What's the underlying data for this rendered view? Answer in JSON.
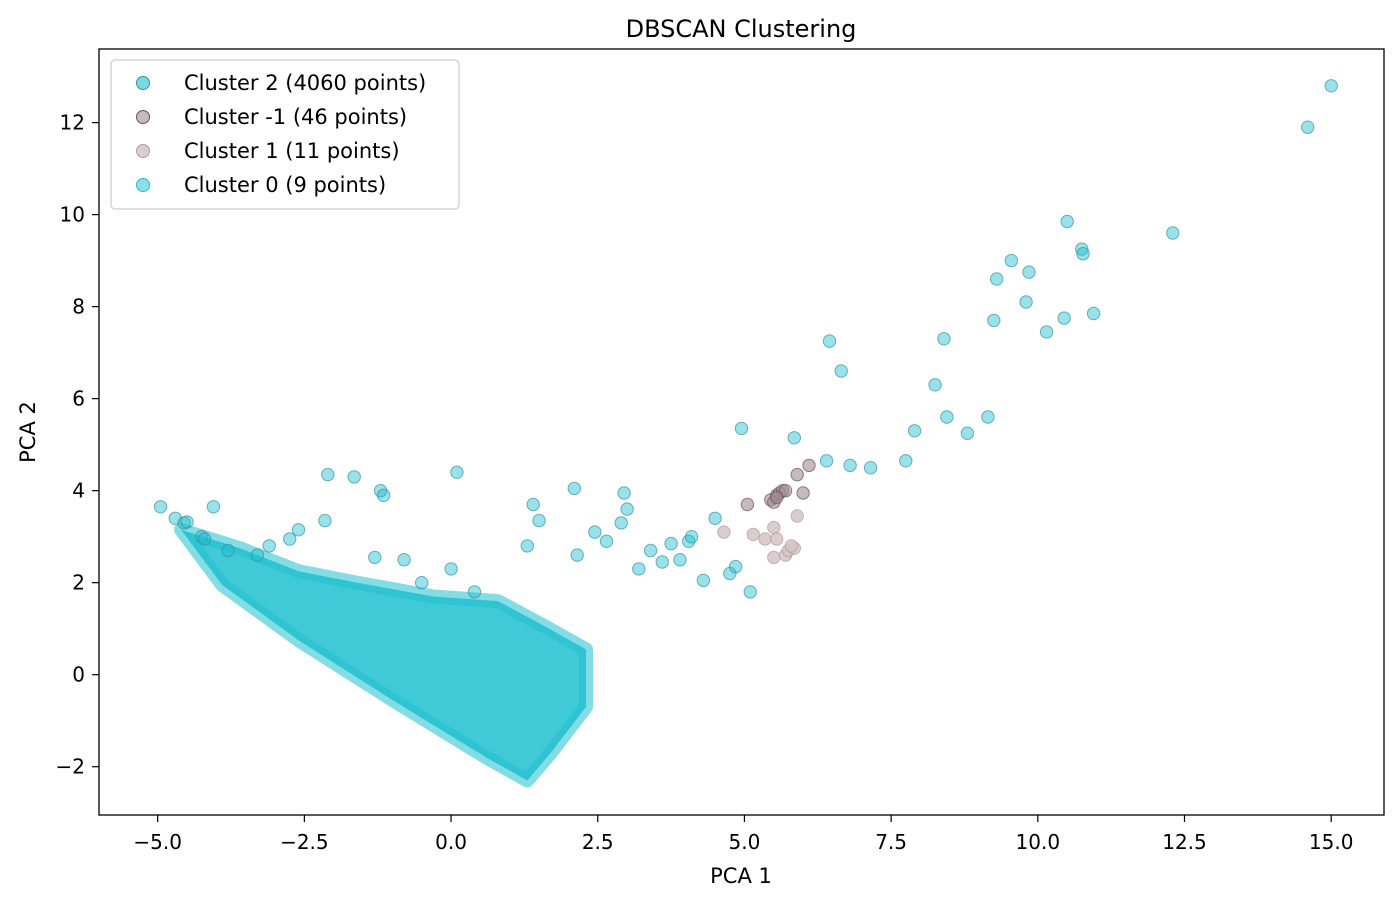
{
  "chart_data": {
    "type": "scatter",
    "title": "DBSCAN Clustering",
    "xlabel": "PCA 1",
    "ylabel": "PCA 2",
    "xlim": [
      -6.0,
      15.9
    ],
    "ylim": [
      -3.05,
      13.6
    ],
    "xticks": [
      -5.0,
      -2.5,
      0.0,
      2.5,
      5.0,
      7.5,
      10.0,
      12.5,
      15.0
    ],
    "xtick_labels": [
      "−5.0",
      "−2.5",
      "0.0",
      "2.5",
      "5.0",
      "7.5",
      "10.0",
      "12.5",
      "15.0"
    ],
    "yticks": [
      -2,
      0,
      2,
      4,
      6,
      8,
      10,
      12
    ],
    "ytick_labels": [
      "−2",
      "0",
      "2",
      "4",
      "6",
      "8",
      "10",
      "12"
    ],
    "grid": false,
    "legend_position": "top-left",
    "series": [
      {
        "name": "Cluster 2 (4060 points)",
        "label": 2,
        "count": 4060,
        "color": "#1fbfcf",
        "edge": "#3a8fa0",
        "opacity": 0.45,
        "points": [
          [
            -4.95,
            3.65
          ],
          [
            -4.7,
            3.4
          ],
          [
            -4.55,
            3.3
          ],
          [
            -4.5,
            3.32
          ],
          [
            -4.25,
            3.0
          ],
          [
            -4.2,
            2.95
          ],
          [
            -4.05,
            3.65
          ],
          [
            -3.8,
            2.7
          ],
          [
            -3.3,
            2.6
          ],
          [
            -3.1,
            2.8
          ],
          [
            -2.75,
            2.95
          ],
          [
            -2.6,
            3.15
          ],
          [
            -2.15,
            3.35
          ],
          [
            -2.1,
            4.35
          ],
          [
            -1.65,
            4.3
          ],
          [
            -1.2,
            4.0
          ],
          [
            -1.15,
            3.9
          ],
          [
            -1.3,
            2.55
          ],
          [
            -0.8,
            2.5
          ],
          [
            -0.5,
            2.0
          ],
          [
            0.1,
            4.4
          ],
          [
            0.0,
            2.3
          ],
          [
            0.4,
            1.8
          ],
          [
            1.3,
            2.8
          ],
          [
            1.4,
            3.7
          ],
          [
            1.5,
            3.35
          ],
          [
            2.1,
            4.05
          ],
          [
            2.15,
            2.6
          ],
          [
            2.45,
            3.1
          ],
          [
            2.65,
            2.9
          ],
          [
            2.9,
            3.3
          ],
          [
            2.95,
            3.95
          ],
          [
            3.0,
            3.6
          ],
          [
            3.2,
            2.3
          ],
          [
            3.4,
            2.7
          ],
          [
            3.6,
            2.45
          ],
          [
            3.75,
            2.85
          ],
          [
            3.9,
            2.5
          ],
          [
            4.05,
            2.9
          ],
          [
            4.1,
            3.0
          ],
          [
            4.3,
            2.05
          ],
          [
            4.5,
            3.4
          ],
          [
            4.75,
            2.2
          ],
          [
            4.85,
            2.35
          ],
          [
            5.1,
            1.8
          ],
          [
            4.95,
            5.35
          ],
          [
            5.85,
            5.15
          ],
          [
            6.4,
            4.65
          ],
          [
            6.45,
            7.25
          ],
          [
            6.65,
            6.6
          ],
          [
            6.8,
            4.55
          ],
          [
            7.15,
            4.5
          ],
          [
            7.75,
            4.65
          ],
          [
            7.9,
            5.3
          ],
          [
            8.25,
            6.3
          ],
          [
            8.4,
            7.3
          ],
          [
            8.45,
            5.6
          ],
          [
            8.8,
            5.25
          ],
          [
            9.15,
            5.6
          ],
          [
            9.25,
            7.7
          ],
          [
            9.3,
            8.6
          ],
          [
            9.55,
            9.0
          ],
          [
            9.8,
            8.1
          ],
          [
            9.85,
            8.75
          ],
          [
            10.15,
            7.45
          ],
          [
            10.45,
            7.75
          ],
          [
            10.5,
            9.85
          ],
          [
            10.75,
            9.25
          ],
          [
            10.77,
            9.15
          ],
          [
            10.95,
            7.85
          ],
          [
            12.3,
            9.6
          ],
          [
            14.6,
            11.9
          ],
          [
            15.0,
            12.8
          ]
        ]
      },
      {
        "name": "Cluster -1 (46 points)",
        "label": -1,
        "count": 46,
        "color": "#9e8c94",
        "edge": "#6a5058",
        "opacity": 0.6,
        "points": [
          [
            5.05,
            3.7
          ],
          [
            5.45,
            3.8
          ],
          [
            5.5,
            3.75
          ],
          [
            5.55,
            3.9
          ],
          [
            5.6,
            3.95
          ],
          [
            5.65,
            4.0
          ],
          [
            5.7,
            4.0
          ],
          [
            5.9,
            4.35
          ],
          [
            6.0,
            3.95
          ],
          [
            6.1,
            4.55
          ],
          [
            5.55,
            3.85
          ]
        ]
      },
      {
        "name": "Cluster 1 (11 points)",
        "label": 1,
        "count": 11,
        "color": "#d4c4c8",
        "edge": "#b09aa0",
        "opacity": 0.85,
        "points": [
          [
            4.65,
            3.1
          ],
          [
            5.15,
            3.05
          ],
          [
            5.35,
            2.95
          ],
          [
            5.5,
            2.55
          ],
          [
            5.5,
            3.2
          ],
          [
            5.55,
            2.95
          ],
          [
            5.7,
            2.6
          ],
          [
            5.75,
            2.7
          ],
          [
            5.85,
            2.75
          ],
          [
            5.9,
            3.45
          ],
          [
            5.8,
            2.8
          ]
        ]
      },
      {
        "name": "Cluster 0 (9 points)",
        "label": 0,
        "count": 9,
        "color": "#1fbfcf",
        "edge": "#1fbfcf",
        "opacity": 0.5,
        "points": []
      }
    ]
  }
}
